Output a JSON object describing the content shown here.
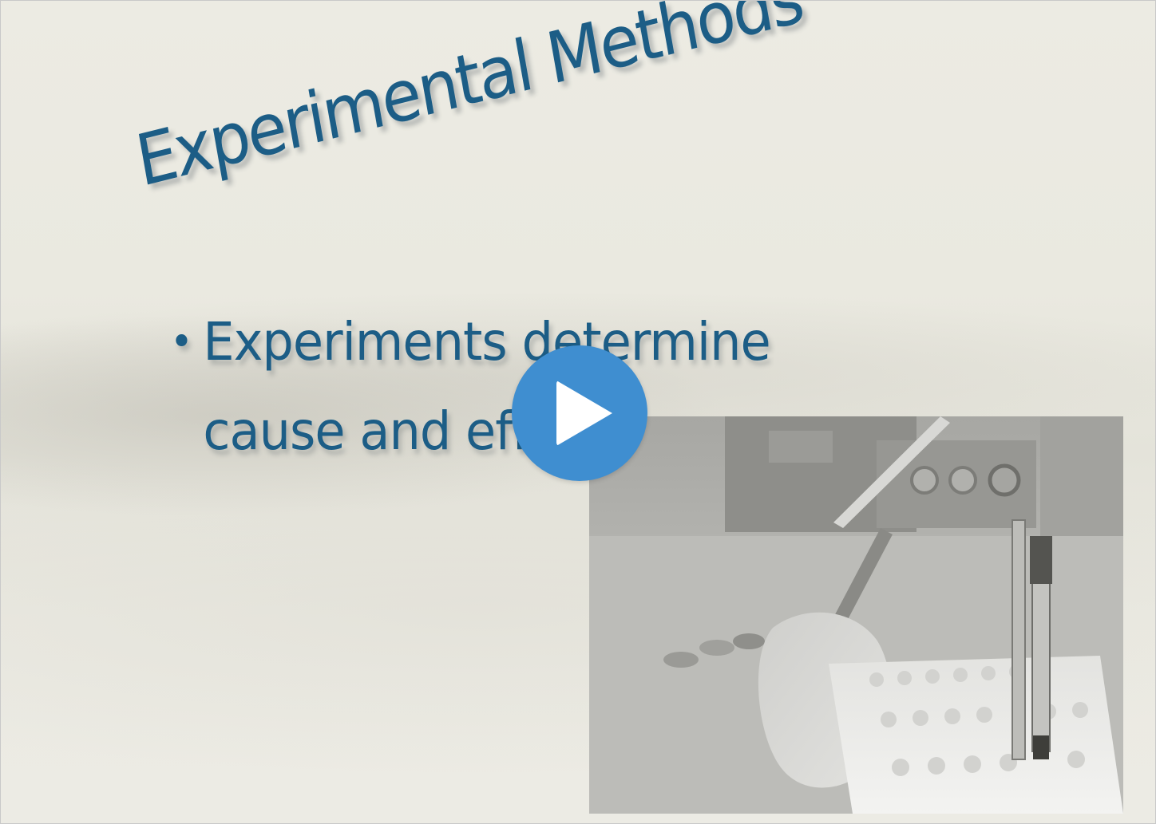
{
  "slide": {
    "title": "Experimental Methods",
    "bullet_symbol": "•",
    "bullet_line_1": "Experiments determine",
    "bullet_line_2": "cause and effect"
  },
  "player": {
    "play_icon": "play-icon",
    "play_color": "#3f8ed0"
  },
  "colors": {
    "title_text": "#1c5d86",
    "background": "#ecebe3"
  }
}
